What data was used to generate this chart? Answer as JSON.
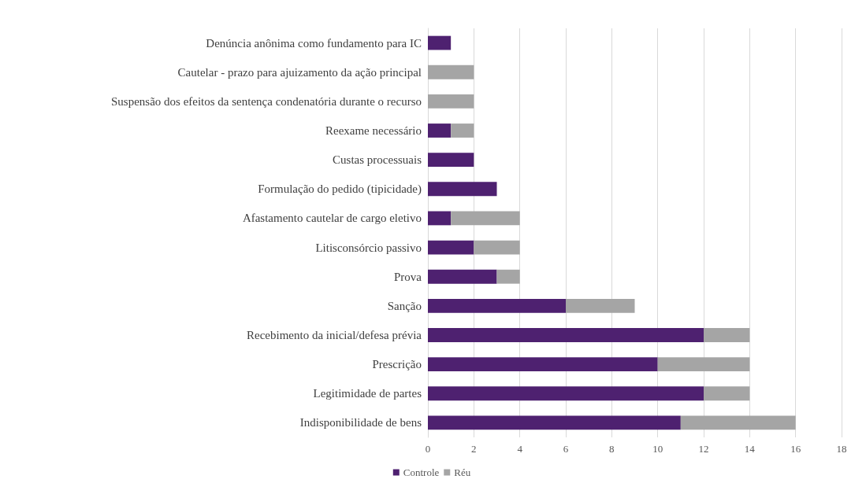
{
  "chart_data": {
    "type": "bar",
    "orientation": "horizontal",
    "stacked": true,
    "categories": [
      "Denúncia anônima como fundamento para IC",
      "Cautelar - prazo para ajuizamento da ação principal",
      "Suspensão dos efeitos da sentença condenatória durante o recurso",
      "Reexame necessário",
      "Custas processuais",
      "Formulação do pedido (tipicidade)",
      "Afastamento cautelar de cargo eletivo",
      "Litisconsórcio passivo",
      "Prova",
      "Sanção",
      "Recebimento da inicial/defesa prévia",
      "Prescrição",
      "Legitimidade de partes",
      "Indisponibilidade de bens"
    ],
    "series": [
      {
        "name": "Controle",
        "color": "#4e2170",
        "values": [
          1,
          0,
          0,
          1,
          2,
          3,
          1,
          2,
          3,
          6,
          12,
          10,
          12,
          11
        ]
      },
      {
        "name": "Réu",
        "color": "#a5a5a5",
        "values": [
          0,
          2,
          2,
          1,
          0,
          0,
          3,
          2,
          1,
          3,
          2,
          4,
          2,
          5
        ]
      }
    ],
    "xlim": [
      0,
      18
    ],
    "xticks": [
      0,
      2,
      4,
      6,
      8,
      10,
      12,
      14,
      16,
      18
    ],
    "grid": "x",
    "legend": "bottom"
  }
}
